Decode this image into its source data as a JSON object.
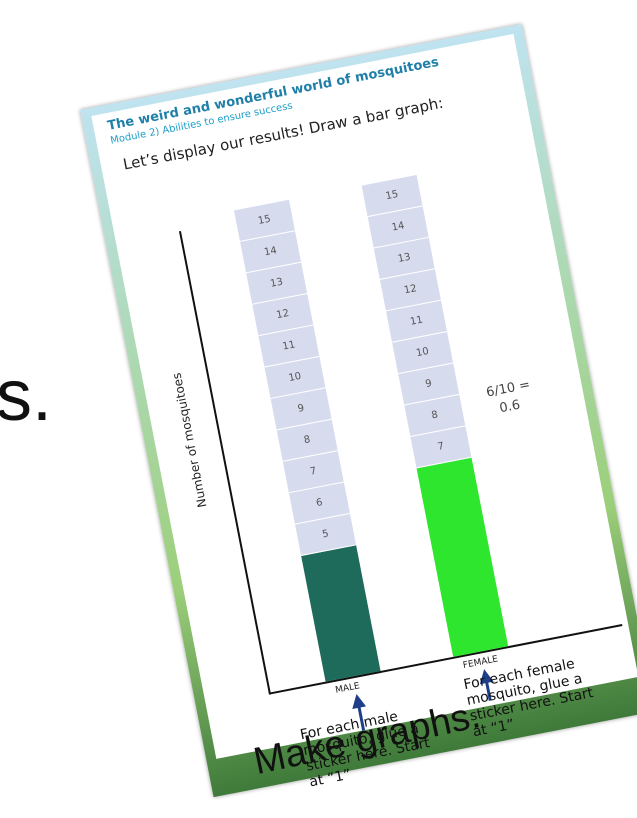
{
  "slide": {
    "partial_text": "s.",
    "caption": "Make graphs."
  },
  "worksheet": {
    "title": "The weird and wonderful world of mosquitoes",
    "subtitle": "Module 2) Abilities to ensure success",
    "instruction": "Let’s display our results! Draw a bar graph:",
    "y_axis_label": "Number of mosquitoes",
    "columns": [
      {
        "label": "MALE",
        "cells": [
          5,
          6,
          7,
          8,
          9,
          10,
          11,
          12,
          13,
          14,
          15
        ],
        "note": "For each male mosquito, glue a sticker here. Start at “1”"
      },
      {
        "label": "FEMALE",
        "cells": [
          7,
          8,
          9,
          10,
          11,
          12,
          13,
          14,
          15
        ],
        "note": "For each female mosquito, glue a sticker here. Start at “1”"
      }
    ],
    "annotation": [
      "6/10 =",
      "0.6"
    ]
  }
}
